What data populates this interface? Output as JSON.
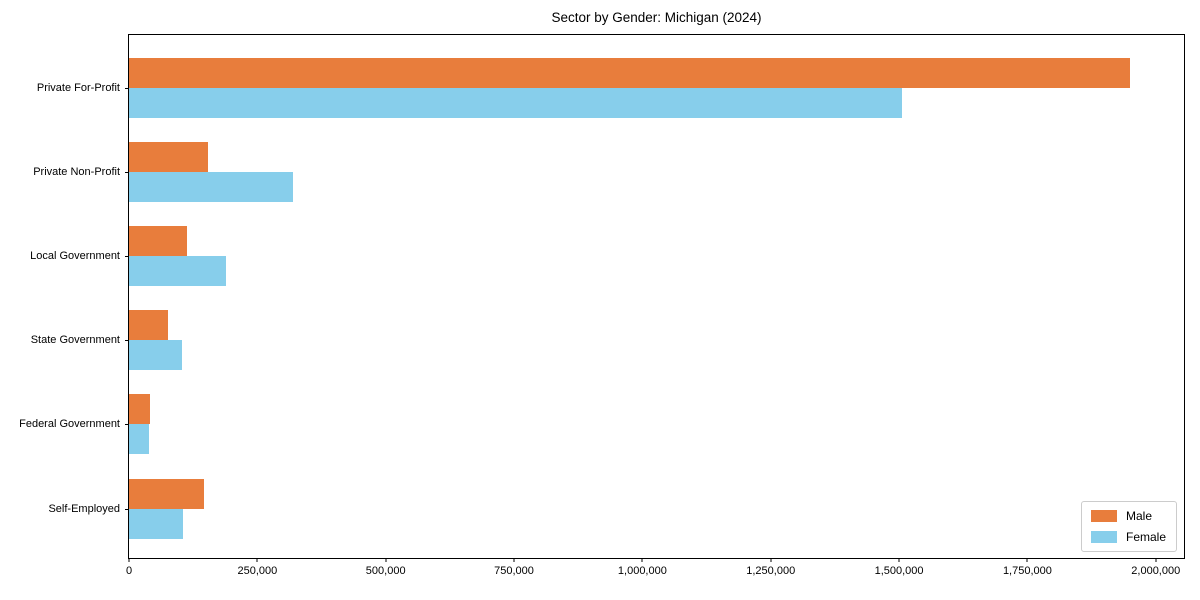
{
  "chart_data": {
    "type": "bar",
    "orientation": "horizontal",
    "title": "Sector by Gender: Michigan (2024)",
    "categories": [
      "Private For-Profit",
      "Private Non-Profit",
      "Local Government",
      "State Government",
      "Federal Government",
      "Self-Employed"
    ],
    "series": [
      {
        "name": "Male",
        "color": "#e87d3c",
        "values": [
          1950000,
          153000,
          113000,
          76000,
          41000,
          146000
        ]
      },
      {
        "name": "Female",
        "color": "#87ceeb",
        "values": [
          1505000,
          319000,
          189000,
          103000,
          38000,
          105000
        ]
      }
    ],
    "xlabel": "",
    "ylabel": "",
    "xlim": [
      0,
      2055000
    ],
    "xticks": [
      {
        "value": 0,
        "label": "0"
      },
      {
        "value": 250000,
        "label": "250,000"
      },
      {
        "value": 500000,
        "label": "500,000"
      },
      {
        "value": 750000,
        "label": "750,000"
      },
      {
        "value": 1000000,
        "label": "1,000,000"
      },
      {
        "value": 1250000,
        "label": "1,250,000"
      },
      {
        "value": 1500000,
        "label": "1,500,000"
      },
      {
        "value": 1750000,
        "label": "1,750,000"
      },
      {
        "value": 2000000,
        "label": "2,000,000"
      }
    ],
    "grid": false,
    "legend_position": "lower right"
  }
}
